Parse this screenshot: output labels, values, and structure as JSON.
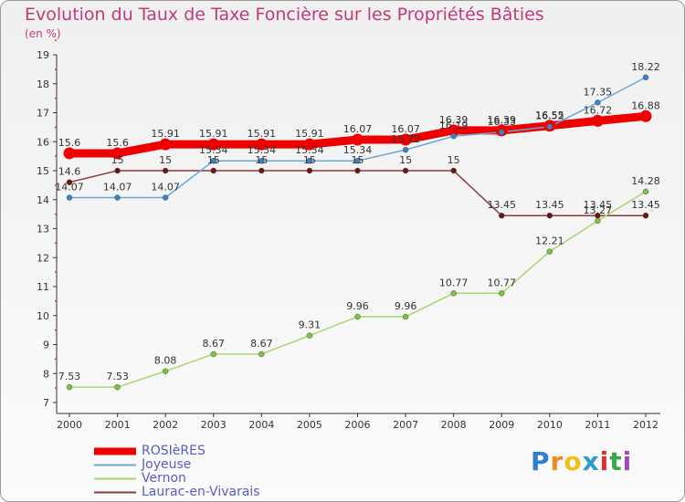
{
  "title": "Evolution du Taux de Taxe Foncière sur les Propriétés Bâties",
  "unit_label": "(en %)",
  "logo": {
    "letters": [
      "P",
      "r",
      "o",
      "x",
      "i",
      "t",
      "i"
    ],
    "colors": [
      "#2e7fd0",
      "#f08a24",
      "#f0c020",
      "#2e9bd0",
      "#e23030",
      "#3aa84a",
      "#a048c0"
    ]
  },
  "chart_data": {
    "type": "line",
    "x": [
      2000,
      2001,
      2002,
      2003,
      2004,
      2005,
      2006,
      2007,
      2008,
      2009,
      2010,
      2011,
      2012
    ],
    "ylim": [
      7,
      19
    ],
    "yticks": [
      7,
      8,
      9,
      10,
      11,
      12,
      13,
      14,
      15,
      16,
      17,
      18,
      19
    ],
    "grid": false,
    "legend_position": "bottom-left",
    "series": [
      {
        "name": "ROSIèRES",
        "color": "#ee0000",
        "width": 9,
        "point_color": "#ee0000",
        "values": [
          15.6,
          15.6,
          15.91,
          15.91,
          15.91,
          15.91,
          16.07,
          16.07,
          16.39,
          16.39,
          16.55,
          16.72,
          16.88
        ],
        "labels": [
          "15.6",
          "15.6",
          "15.91",
          "15.91",
          "15.91",
          "15.91",
          "16.07",
          "16.07",
          "16.39",
          "16.39",
          "16.55",
          "16.72",
          "16.88"
        ]
      },
      {
        "name": "Joyeuse",
        "color": "#6aa6d6",
        "width": 1.5,
        "point_color": "#3d82c4",
        "values": [
          14.07,
          14.07,
          14.07,
          15.34,
          15.34,
          15.34,
          15.34,
          15.72,
          16.19,
          16.33,
          16.52,
          17.35,
          18.22
        ],
        "labels": [
          "14.07",
          "14.07",
          "14.07",
          "15.34",
          "15.34",
          "15.34",
          "15.34",
          "15.72",
          "16.19",
          "16.33",
          "16.52",
          "17.35",
          "18.22"
        ]
      },
      {
        "name": "Vernon",
        "color": "#a6d86e",
        "width": 1.5,
        "point_color": "#7cc23c",
        "values": [
          7.53,
          7.53,
          8.08,
          8.67,
          8.67,
          9.31,
          9.96,
          9.96,
          10.77,
          10.77,
          12.21,
          13.27,
          14.28
        ],
        "labels": [
          "7.53",
          "7.53",
          "8.08",
          "8.67",
          "8.67",
          "9.31",
          "9.96",
          "9.96",
          "10.77",
          "10.77",
          "12.21",
          "13.27",
          "14.28"
        ]
      },
      {
        "name": "Laurac-en-Vivarais",
        "color": "#8b3a3a",
        "width": 1.5,
        "point_color": "#6a1414",
        "values": [
          14.6,
          15,
          15,
          15,
          15,
          15,
          15,
          15,
          15,
          13.45,
          13.45,
          13.45,
          13.45
        ],
        "labels": [
          "14.6",
          "15",
          "15",
          "15",
          "15",
          "15",
          "15",
          "15",
          "15",
          "13.45",
          "13.45",
          "13.45",
          "13.45"
        ]
      }
    ]
  }
}
